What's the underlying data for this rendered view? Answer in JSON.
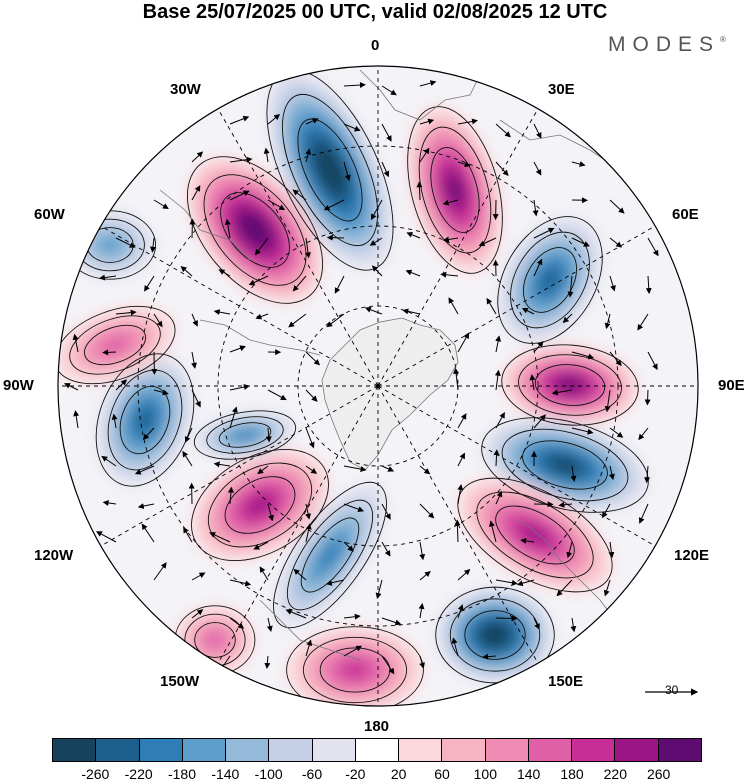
{
  "header": {
    "title": "Base 25/07/2025 00 UTC, valid 02/08/2025 12 UTC",
    "brand": "MODES",
    "brand_mark": "®"
  },
  "longitude_labels": [
    "0",
    "30E",
    "60E",
    "90E",
    "120E",
    "150E",
    "180",
    "150W",
    "120W",
    "90W",
    "60W",
    "30W"
  ],
  "reference_vector": {
    "label": "30"
  },
  "colorbar": {
    "colors": [
      "#16425c",
      "#1d5f8d",
      "#2e7db6",
      "#5d9ecb",
      "#95bad9",
      "#c5d0e6",
      "#e3e3f0",
      "#ffffff",
      "#fbd8dc",
      "#f6b3c1",
      "#ee8cb3",
      "#e060a8",
      "#c72e97",
      "#9c1586",
      "#5e0c72"
    ],
    "tick_labels": [
      "-260",
      "-220",
      "-180",
      "-140",
      "-100",
      "-60",
      "-20",
      "20",
      "60",
      "100",
      "140",
      "180",
      "220",
      "260"
    ]
  },
  "anomaly_centers": [
    {
      "sign": "negative",
      "value": -260
    },
    {
      "sign": "positive",
      "value": 260
    },
    {
      "sign": "positive",
      "value": 220
    },
    {
      "sign": "negative",
      "value": -180
    },
    {
      "sign": "positive",
      "value": 220
    },
    {
      "sign": "negative",
      "value": -220
    },
    {
      "sign": "positive",
      "value": 180
    },
    {
      "sign": "negative",
      "value": -260
    },
    {
      "sign": "positive",
      "value": 140
    },
    {
      "sign": "negative",
      "value": -140
    },
    {
      "sign": "positive",
      "value": 180
    },
    {
      "sign": "negative",
      "value": -180
    },
    {
      "sign": "negative",
      "value": -140
    },
    {
      "sign": "positive",
      "value": 100
    },
    {
      "sign": "negative",
      "value": -100
    },
    {
      "sign": "positive",
      "value": 100
    }
  ]
}
